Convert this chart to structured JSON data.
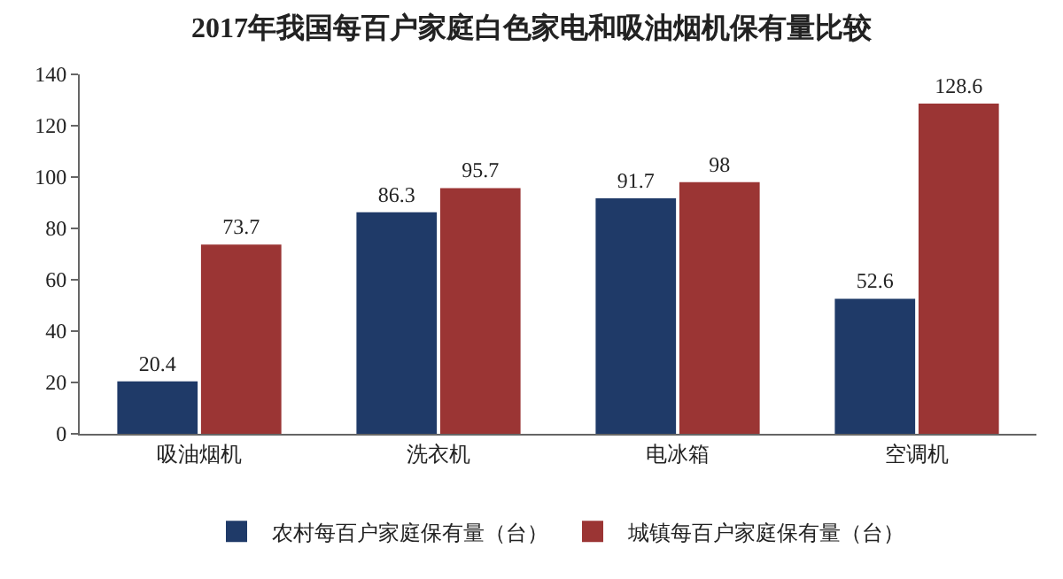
{
  "chart_data": {
    "type": "bar",
    "title": "2017年我国每百户家庭白色家电和吸油烟机保有量比较",
    "categories": [
      "吸油烟机",
      "洗衣机",
      "电冰箱",
      "空调机"
    ],
    "series": [
      {
        "name": "农村每百户家庭保有量（台）",
        "color": "#1f3a68",
        "values": [
          20.4,
          86.3,
          91.7,
          52.6
        ]
      },
      {
        "name": "城镇每百户家庭保有量（台）",
        "color": "#9b3534",
        "values": [
          73.7,
          95.7,
          98,
          128.6
        ]
      }
    ],
    "ylim": [
      0,
      140
    ],
    "yticks": [
      0,
      20,
      40,
      60,
      80,
      100,
      120,
      140
    ],
    "grid": false,
    "legend": "bottom",
    "data_labels": true
  }
}
